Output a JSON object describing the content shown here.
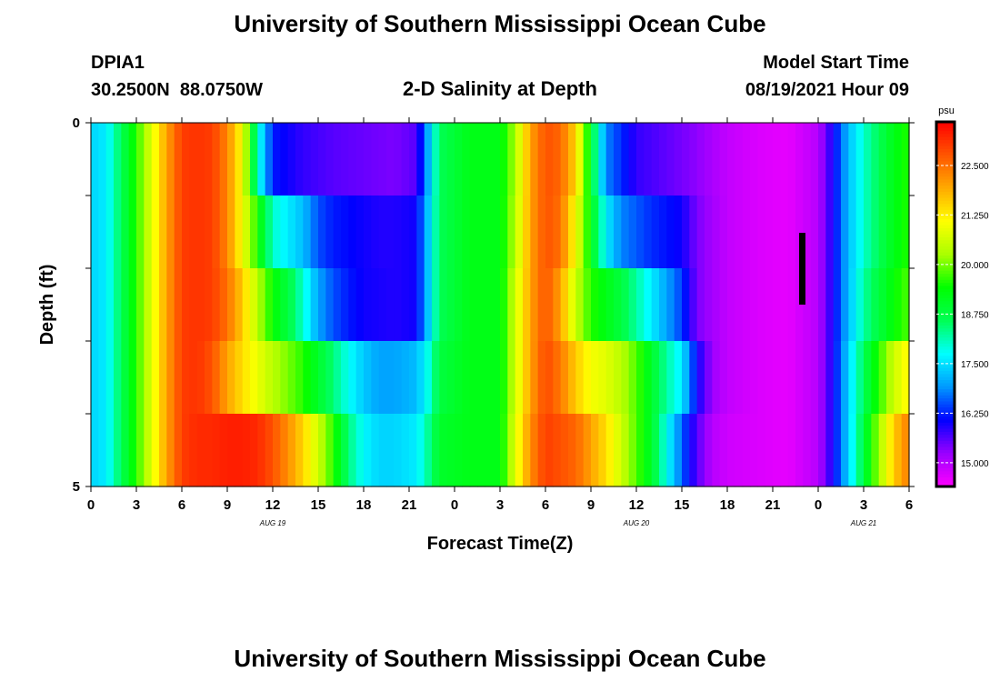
{
  "header": {
    "title": "University of Southern Mississippi Ocean Cube",
    "station_id": "DPIA1",
    "station_coords": "30.2500N  88.0750W",
    "plot_title": "2-D Salinity at Depth",
    "model_start_label": "Model Start Time",
    "model_start_value": "08/19/2021 Hour 09"
  },
  "footer": {
    "title": "University of Southern Mississippi Ocean Cube"
  },
  "chart_data": {
    "type": "heatmap",
    "title": "2-D Salinity at Depth",
    "xlabel": "Forecast Time(Z)",
    "ylabel": "Depth (ft)",
    "x_tick_labels": [
      "0",
      "3",
      "6",
      "9",
      "12",
      "15",
      "18",
      "21",
      "0",
      "3",
      "6",
      "9",
      "12",
      "15",
      "18",
      "21",
      "0",
      "3",
      "6"
    ],
    "x_range_hours": [
      0,
      54
    ],
    "date_labels": [
      {
        "label": "AUG 19",
        "hour": 12
      },
      {
        "label": "AUG 20",
        "hour": 36
      },
      {
        "label": "AUG 21",
        "hour": 51
      }
    ],
    "y_tick_labels": [
      "0",
      "5"
    ],
    "y_range_ft": [
      0,
      5
    ],
    "depths_ft": [
      0,
      1,
      2,
      3,
      4
    ],
    "colorbar": {
      "unit": "psu",
      "labels": [
        "22.500",
        "21.250",
        "20.000",
        "18.750",
        "17.500",
        "16.250",
        "15.000"
      ],
      "range": [
        14.4,
        23.6
      ]
    },
    "gradient_stops": [
      "#ff00ff",
      "#9900ff",
      "#0000ff",
      "#0099ff",
      "#00ffff",
      "#00ff55",
      "#00ff00",
      "#aaff00",
      "#ffff00",
      "#ffaa00",
      "#ff5500",
      "#ff0000"
    ],
    "rows": [
      {
        "depth_ft": 0,
        "knots": [
          [
            0,
            17.4
          ],
          [
            1,
            17.6
          ],
          [
            2,
            18.6
          ],
          [
            3,
            19.6
          ],
          [
            4,
            20.8
          ],
          [
            5,
            22.0
          ],
          [
            6,
            23.0
          ],
          [
            7,
            23.1
          ],
          [
            8,
            23.0
          ],
          [
            9,
            22.3
          ],
          [
            10,
            21.0
          ],
          [
            11,
            18.0
          ],
          [
            12,
            16.2
          ],
          [
            14,
            15.8
          ],
          [
            16,
            15.6
          ],
          [
            18,
            15.5
          ],
          [
            20,
            15.4
          ],
          [
            21.5,
            15.6
          ],
          [
            22.2,
            17.0
          ],
          [
            23,
            18.6
          ],
          [
            25,
            19.2
          ],
          [
            27,
            19.2
          ],
          [
            28,
            20.3
          ],
          [
            29,
            22.0
          ],
          [
            30,
            22.8
          ],
          [
            31,
            22.6
          ],
          [
            32,
            21.5
          ],
          [
            33,
            19.0
          ],
          [
            34,
            16.8
          ],
          [
            36,
            15.8
          ],
          [
            40,
            15.3
          ],
          [
            42,
            14.9
          ],
          [
            44,
            14.7
          ],
          [
            46,
            14.6
          ],
          [
            48,
            15.0
          ],
          [
            49,
            16.0
          ],
          [
            50,
            17.2
          ],
          [
            51,
            18.0
          ],
          [
            52,
            18.6
          ],
          [
            53,
            19.2
          ],
          [
            54,
            19.6
          ]
        ]
      },
      {
        "depth_ft": 1,
        "knots": [
          [
            0,
            17.4
          ],
          [
            1,
            17.6
          ],
          [
            2,
            18.6
          ],
          [
            3,
            19.6
          ],
          [
            4,
            20.8
          ],
          [
            5,
            22.0
          ],
          [
            6,
            23.0
          ],
          [
            7,
            23.1
          ],
          [
            8,
            23.0
          ],
          [
            9,
            22.3
          ],
          [
            10,
            21.0
          ],
          [
            11,
            19.5
          ],
          [
            12,
            18.0
          ],
          [
            14,
            17.2
          ],
          [
            15,
            16.5
          ],
          [
            16,
            16.2
          ],
          [
            17,
            16.1
          ],
          [
            18,
            16.0
          ],
          [
            19,
            15.9
          ],
          [
            20,
            15.9
          ],
          [
            21.5,
            16.0
          ],
          [
            22.2,
            17.2
          ],
          [
            23,
            18.6
          ],
          [
            25,
            19.2
          ],
          [
            27,
            19.2
          ],
          [
            28,
            20.4
          ],
          [
            29,
            22.0
          ],
          [
            30,
            22.8
          ],
          [
            31,
            22.5
          ],
          [
            32,
            21.0
          ],
          [
            33,
            19.2
          ],
          [
            34,
            17.6
          ],
          [
            35,
            16.8
          ],
          [
            37,
            16.3
          ],
          [
            39,
            16.0
          ],
          [
            40,
            15.4
          ],
          [
            42,
            14.9
          ],
          [
            44,
            14.7
          ],
          [
            46,
            14.6
          ],
          [
            48,
            15.0
          ],
          [
            49,
            16.0
          ],
          [
            50,
            17.2
          ],
          [
            51,
            18.0
          ],
          [
            52,
            18.6
          ],
          [
            53,
            19.2
          ],
          [
            54,
            19.6
          ]
        ]
      },
      {
        "depth_ft": 2,
        "knots": [
          [
            0,
            17.4
          ],
          [
            1,
            17.6
          ],
          [
            2,
            18.6
          ],
          [
            3,
            19.6
          ],
          [
            4,
            20.8
          ],
          [
            5,
            22.0
          ],
          [
            6,
            23.0
          ],
          [
            7,
            23.1
          ],
          [
            8,
            23.0
          ],
          [
            9,
            22.5
          ],
          [
            10,
            21.6
          ],
          [
            11,
            20.4
          ],
          [
            12,
            19.4
          ],
          [
            13,
            18.8
          ],
          [
            14,
            18.0
          ],
          [
            15,
            17.0
          ],
          [
            16,
            16.5
          ],
          [
            17,
            16.2
          ],
          [
            18,
            16.0
          ],
          [
            20,
            15.9
          ],
          [
            21.5,
            16.0
          ],
          [
            22.2,
            17.2
          ],
          [
            23,
            18.6
          ],
          [
            25,
            19.2
          ],
          [
            27,
            19.2
          ],
          [
            28,
            20.6
          ],
          [
            29,
            22.0
          ],
          [
            30,
            22.8
          ],
          [
            31,
            22.0
          ],
          [
            32,
            20.5
          ],
          [
            33,
            19.6
          ],
          [
            34,
            19.2
          ],
          [
            35,
            18.8
          ],
          [
            36,
            18.2
          ],
          [
            37,
            17.6
          ],
          [
            38,
            17.0
          ],
          [
            39,
            16.4
          ],
          [
            40,
            15.4
          ],
          [
            42,
            14.9
          ],
          [
            44,
            14.7
          ],
          [
            46,
            14.6
          ],
          [
            48,
            15.0
          ],
          [
            49,
            16.0
          ],
          [
            50,
            17.2
          ],
          [
            51,
            18.2
          ],
          [
            52,
            18.8
          ],
          [
            53,
            19.4
          ],
          [
            54,
            19.8
          ]
        ]
      },
      {
        "depth_ft": 3,
        "knots": [
          [
            0,
            17.4
          ],
          [
            1,
            17.6
          ],
          [
            2,
            18.6
          ],
          [
            3,
            19.6
          ],
          [
            4,
            20.8
          ],
          [
            5,
            22.0
          ],
          [
            6,
            23.0
          ],
          [
            7,
            23.1
          ],
          [
            8,
            22.8
          ],
          [
            9,
            22.0
          ],
          [
            10,
            21.4
          ],
          [
            11,
            20.9
          ],
          [
            12,
            20.4
          ],
          [
            13,
            20.0
          ],
          [
            14,
            19.6
          ],
          [
            15,
            19.0
          ],
          [
            16,
            18.4
          ],
          [
            17,
            17.8
          ],
          [
            18,
            17.3
          ],
          [
            19,
            17.0
          ],
          [
            20,
            17.0
          ],
          [
            21.5,
            17.2
          ],
          [
            22.2,
            17.8
          ],
          [
            23,
            18.8
          ],
          [
            25,
            19.2
          ],
          [
            27,
            19.2
          ],
          [
            28,
            20.6
          ],
          [
            29,
            22.0
          ],
          [
            30,
            22.9
          ],
          [
            31,
            22.4
          ],
          [
            32,
            21.6
          ],
          [
            33,
            21.0
          ],
          [
            34,
            20.8
          ],
          [
            35,
            20.4
          ],
          [
            36,
            19.8
          ],
          [
            37,
            19.0
          ],
          [
            38,
            18.2
          ],
          [
            39,
            17.6
          ],
          [
            40,
            16.0
          ],
          [
            41,
            15.2
          ],
          [
            42,
            14.9
          ],
          [
            44,
            14.7
          ],
          [
            46,
            14.6
          ],
          [
            48,
            15.0
          ],
          [
            49,
            16.0
          ],
          [
            50,
            17.4
          ],
          [
            51,
            18.6
          ],
          [
            52,
            19.6
          ],
          [
            53,
            20.6
          ],
          [
            54,
            21.2
          ]
        ]
      },
      {
        "depth_ft": 4,
        "knots": [
          [
            0,
            17.4
          ],
          [
            1,
            17.6
          ],
          [
            2,
            18.6
          ],
          [
            3,
            19.6
          ],
          [
            4,
            20.8
          ],
          [
            5,
            22.0
          ],
          [
            6,
            23.0
          ],
          [
            7,
            23.2
          ],
          [
            8,
            23.2
          ],
          [
            9,
            23.3
          ],
          [
            10,
            23.3
          ],
          [
            11,
            23.2
          ],
          [
            12,
            22.8
          ],
          [
            13,
            22.2
          ],
          [
            14,
            21.5
          ],
          [
            15,
            20.6
          ],
          [
            16,
            19.6
          ],
          [
            17,
            18.4
          ],
          [
            18,
            17.7
          ],
          [
            19,
            17.4
          ],
          [
            20,
            17.4
          ],
          [
            21.5,
            17.6
          ],
          [
            22.2,
            18.2
          ],
          [
            23,
            19.0
          ],
          [
            25,
            19.2
          ],
          [
            27,
            19.2
          ],
          [
            28,
            20.8
          ],
          [
            29,
            22.2
          ],
          [
            30,
            23.0
          ],
          [
            31,
            22.8
          ],
          [
            32,
            22.6
          ],
          [
            33,
            22.0
          ],
          [
            34,
            21.4
          ],
          [
            35,
            20.6
          ],
          [
            36,
            19.8
          ],
          [
            37,
            19.0
          ],
          [
            38,
            17.8
          ],
          [
            39,
            16.6
          ],
          [
            40,
            15.6
          ],
          [
            41,
            15.0
          ],
          [
            42,
            14.8
          ],
          [
            44,
            14.7
          ],
          [
            46,
            14.6
          ],
          [
            48,
            15.0
          ],
          [
            49,
            16.0
          ],
          [
            50,
            17.4
          ],
          [
            51,
            18.8
          ],
          [
            52,
            20.2
          ],
          [
            53,
            21.6
          ],
          [
            54,
            22.4
          ]
        ]
      }
    ]
  }
}
